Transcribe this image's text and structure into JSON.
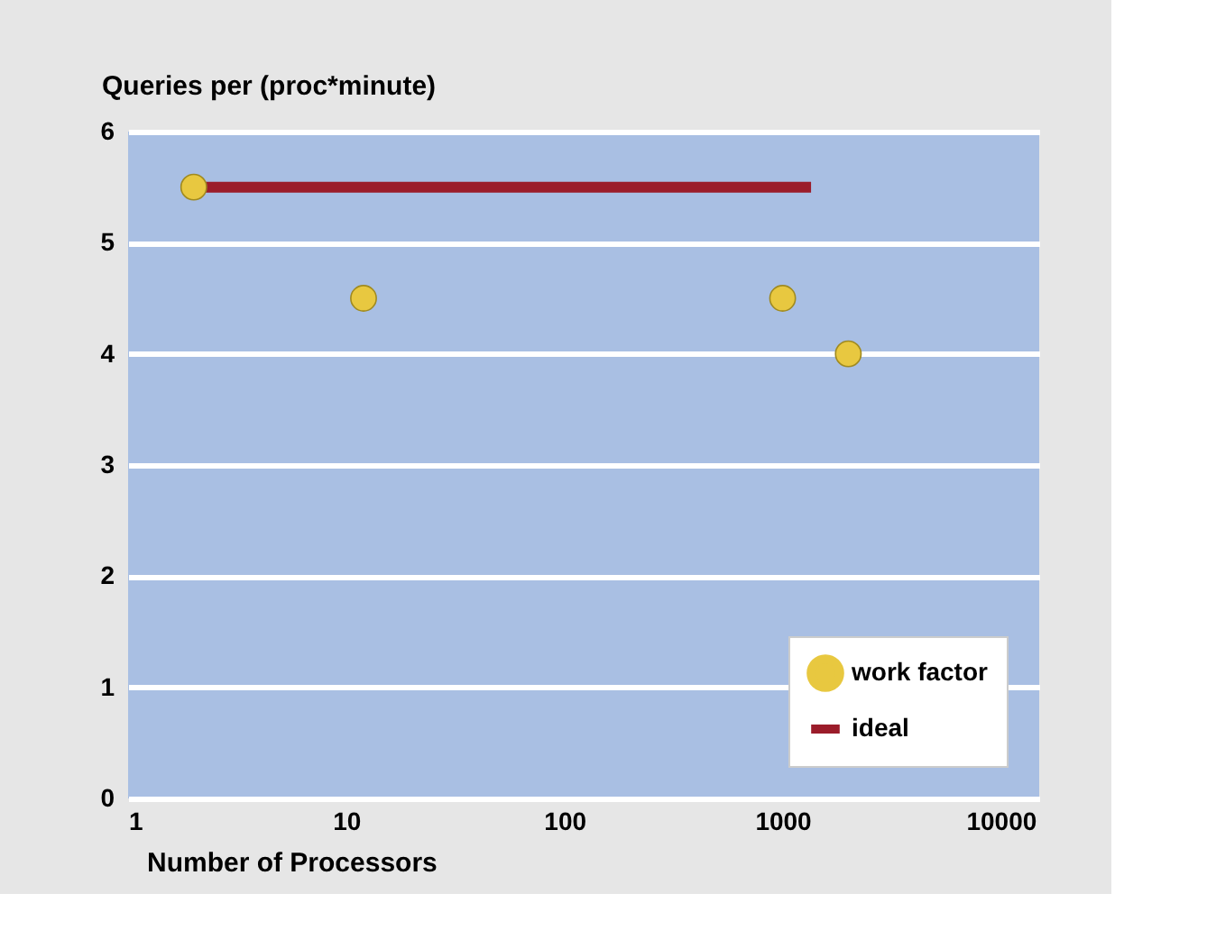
{
  "chart_data": {
    "type": "scatter",
    "xlabel": "Number of Processors",
    "ylabel": "Queries per (proc*minute)",
    "log": "x",
    "xlim": [
      1,
      15000
    ],
    "xticks": [
      1,
      10,
      100,
      1000,
      10000
    ],
    "ylim": [
      0,
      6
    ],
    "yticks": [
      0,
      1,
      2,
      3,
      4,
      5,
      6
    ],
    "grid": "y",
    "legend": "bottom right",
    "series": [
      {
        "name": "work factor",
        "marker": "circle",
        "color": "#e8c840",
        "x": [
          2,
          12,
          1000,
          2000
        ],
        "values": [
          5.5,
          4.5,
          4.5,
          4.0
        ]
      },
      {
        "name": "ideal",
        "type": "line",
        "marker": "none",
        "color": "#9b1c2a",
        "line_style": "solid",
        "x": [
          2,
          1350
        ],
        "values": [
          5.5,
          5.5
        ]
      }
    ]
  }
}
